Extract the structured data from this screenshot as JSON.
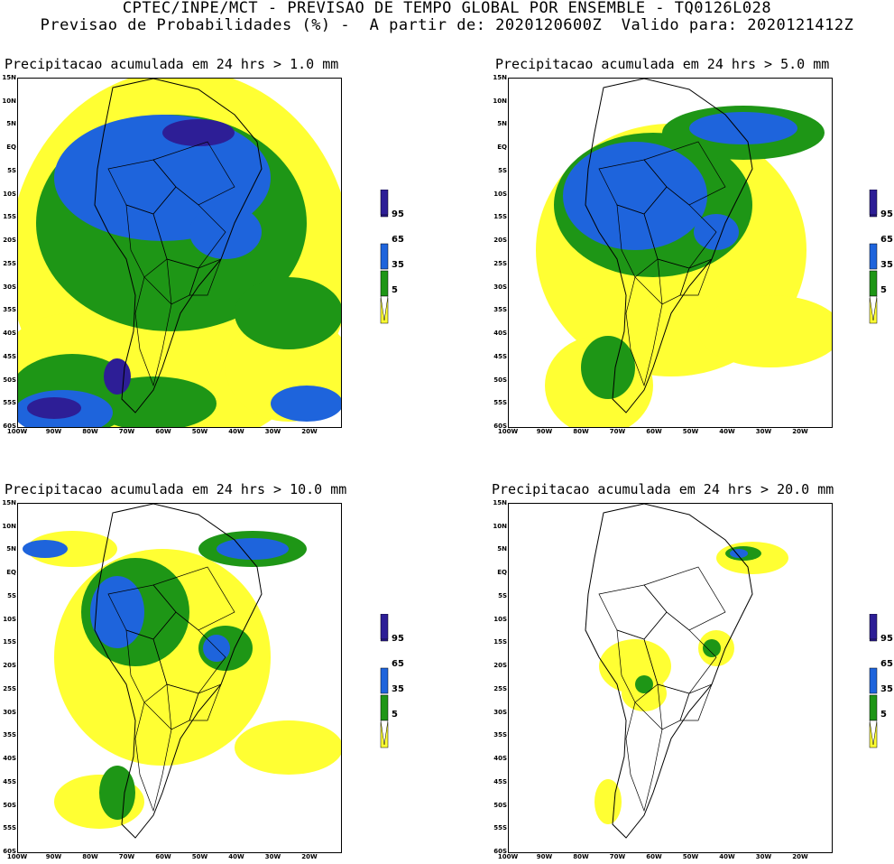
{
  "header": {
    "line1": "CPTEC/INPE/MCT - PREVISAO DE TEMPO GLOBAL POR ENSEMBLE - TQ0126L028",
    "line2": "Previsao de Probabilidades (%) -  A partir de: 2020120600Z  Valido para: 2020121412Z"
  },
  "colors": {
    "c5": "#ffff33",
    "c35": "#1e9616",
    "c65": "#1e64dc",
    "c95": "#2d1e96",
    "land": "#000000"
  },
  "latitudes": [
    "15N",
    "10N",
    "5N",
    "EQ",
    "5S",
    "10S",
    "15S",
    "20S",
    "25S",
    "30S",
    "35S",
    "40S",
    "45S",
    "50S",
    "55S",
    "60S"
  ],
  "longitudes": [
    "100W",
    "90W",
    "80W",
    "70W",
    "60W",
    "50W",
    "40W",
    "30W",
    "20W"
  ],
  "colorbar": {
    "labels": [
      "95",
      "65",
      "35",
      "5"
    ]
  },
  "panels": [
    {
      "title": "Precipitacao acumulada em 24 hrs > 1.0 mm"
    },
    {
      "title": "Precipitacao acumulada em 24 hrs > 5.0 mm"
    },
    {
      "title": "Precipitacao acumulada em 24 hrs > 10.0 mm"
    },
    {
      "title": "Precipitacao acumulada em 24 hrs > 20.0 mm"
    }
  ]
}
